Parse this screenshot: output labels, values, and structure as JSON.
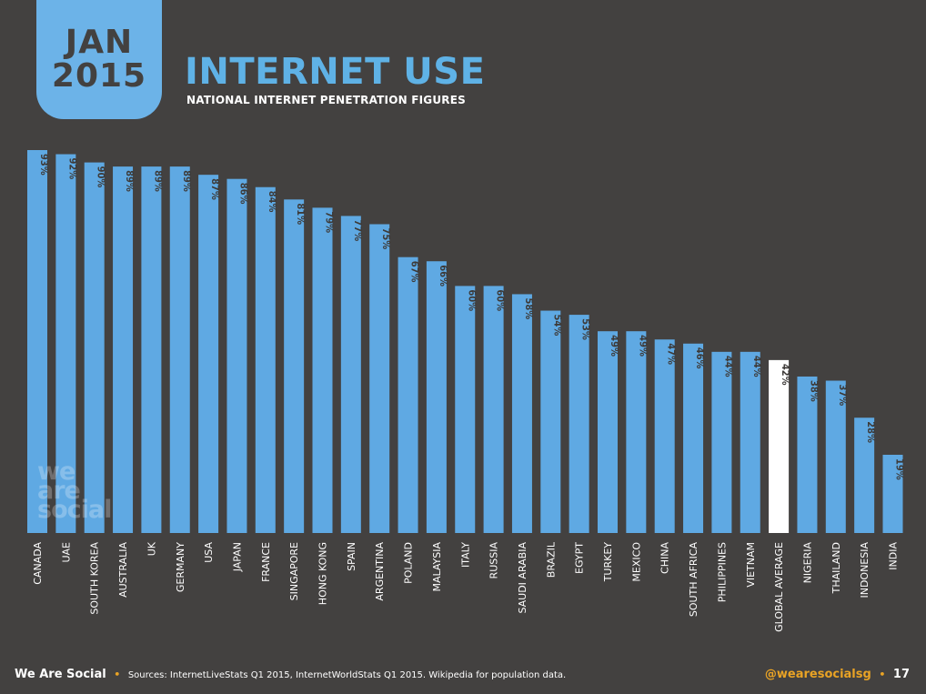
{
  "header": {
    "month": "JAN",
    "year": "2015",
    "title": "INTERNET USE",
    "subtitle": "NATIONAL INTERNET PENETRATION FIGURES"
  },
  "watermark": [
    "we",
    "are",
    "social"
  ],
  "footer": {
    "brand": "We Are Social",
    "sources": "Sources: InternetLiveStats Q1 2015, InternetWorldStats Q1 2015. Wikipedia for population data.",
    "handle": "@wearesocialsg",
    "page": "17"
  },
  "colors": {
    "background": "#434140",
    "bar": "#5fa9e3",
    "highlight_bar": "#ffffff",
    "accent": "#e9a325",
    "label_text": "#3d3a38"
  },
  "chart_data": {
    "type": "bar",
    "ylim": [
      0,
      100
    ],
    "grid": false,
    "highlight": "GLOBAL AVERAGE",
    "categories": [
      "CANADA",
      "UAE",
      "SOUTH KOREA",
      "AUSTRALIA",
      "UK",
      "GERMANY",
      "USA",
      "JAPAN",
      "FRANCE",
      "SINGAPORE",
      "HONG KONG",
      "SPAIN",
      "ARGENTINA",
      "POLAND",
      "MALAYSIA",
      "ITALY",
      "RUSSIA",
      "SAUDI ARABIA",
      "BRAZIL",
      "EGYPT",
      "TURKEY",
      "MEXICO",
      "CHINA",
      "SOUTH AFRICA",
      "PHILIPPINES",
      "VIETNAM",
      "GLOBAL AVERAGE",
      "NIGERIA",
      "THAILAND",
      "INDONESIA",
      "INDIA"
    ],
    "values": [
      93,
      92,
      90,
      89,
      89,
      89,
      87,
      86,
      84,
      81,
      79,
      77,
      75,
      67,
      66,
      60,
      60,
      58,
      54,
      53,
      49,
      49,
      47,
      46,
      44,
      44,
      42,
      38,
      37,
      28,
      19
    ],
    "data_labels": [
      "93%",
      "92%",
      "90%",
      "89%",
      "89%",
      "89%",
      "87%",
      "86%",
      "84%",
      "81%",
      "79%",
      "77%",
      "75%",
      "67%",
      "66%",
      "60%",
      "60%",
      "58%",
      "54%",
      "53%",
      "49%",
      "49%",
      "47%",
      "46%",
      "44%",
      "44%",
      "42%",
      "38%",
      "37%",
      "28%",
      "19%"
    ]
  }
}
